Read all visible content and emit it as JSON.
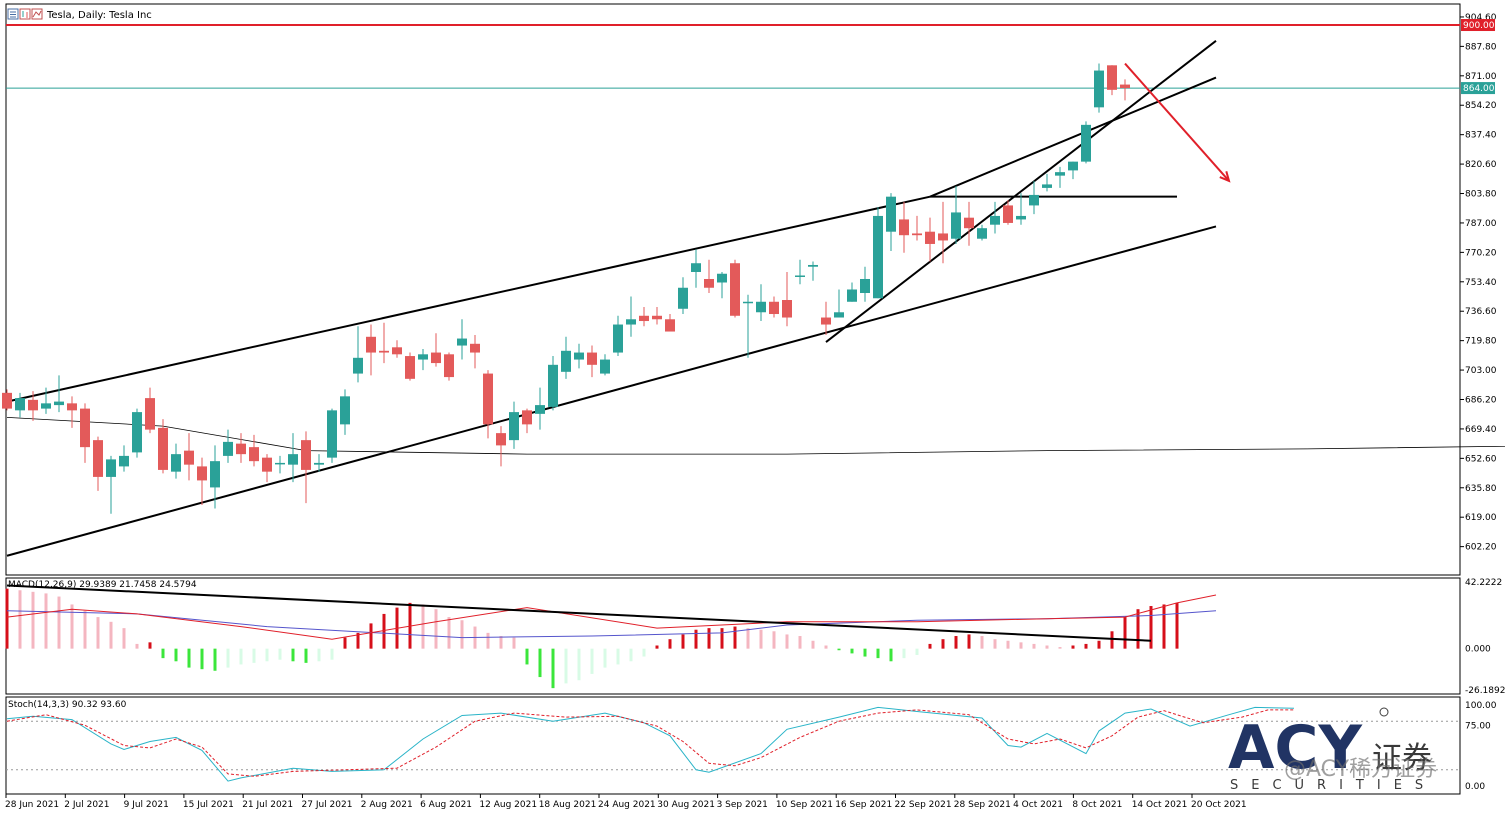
{
  "header": {
    "title": "Tesla, Daily:  Tesla Inc"
  },
  "chart_data": {
    "type": "candlestick",
    "symbol": "Tesla",
    "timeframe": "Daily",
    "price_axis": {
      "range": [
        586.0,
        912.0
      ],
      "ticks": [
        "904.60",
        "887.80",
        "871.00",
        "854.20",
        "837.40",
        "820.60",
        "803.80",
        "787.00",
        "770.20",
        "753.40",
        "736.60",
        "719.80",
        "703.00",
        "686.20",
        "669.40",
        "652.60",
        "635.80",
        "619.00",
        "602.20"
      ]
    },
    "date_ticks": [
      "28 Jun 2021",
      "2 Jul 2021",
      "9 Jul 2021",
      "15 Jul 2021",
      "21 Jul 2021",
      "27 Jul 2021",
      "2 Aug 2021",
      "6 Aug 2021",
      "12 Aug 2021",
      "18 Aug 2021",
      "24 Aug 2021",
      "30 Aug 2021",
      "3 Sep 2021",
      "10 Sep 2021",
      "16 Sep 2021",
      "22 Sep 2021",
      "28 Sep 2021",
      "4 Oct 2021",
      "8 Oct 2021",
      "14 Oct 2021",
      "20 Oct 2021"
    ],
    "horizontal_lines": [
      {
        "price": 900.0,
        "label": "900.00",
        "color": "#e0202a"
      },
      {
        "price": 864.0,
        "label": "864.00",
        "color": "#2aa198"
      }
    ],
    "colors": {
      "up": "#2aa198",
      "down": "#e35a5a",
      "trend": "#000000",
      "arrow": "#e0202a"
    },
    "candles": [
      [
        690,
        681,
        692,
        680
      ],
      [
        680,
        687,
        690,
        676
      ],
      [
        686,
        680,
        691,
        674
      ],
      [
        681,
        684,
        693,
        678
      ],
      [
        683,
        685,
        700,
        679
      ],
      [
        684,
        680,
        688,
        670
      ],
      [
        681,
        659,
        684,
        650
      ],
      [
        663,
        642,
        665,
        634
      ],
      [
        642,
        652,
        654,
        621
      ],
      [
        648,
        654,
        660,
        645
      ],
      [
        656,
        679,
        681,
        653
      ],
      [
        687,
        669,
        693,
        667
      ],
      [
        670,
        646,
        675,
        644
      ],
      [
        645,
        655,
        661,
        641
      ],
      [
        657,
        649,
        667,
        640
      ],
      [
        648,
        640,
        653,
        626
      ],
      [
        636,
        651,
        660,
        624
      ],
      [
        654,
        662,
        669,
        650
      ],
      [
        661,
        655,
        667,
        650
      ],
      [
        659,
        651,
        666,
        648
      ],
      [
        653,
        645,
        655,
        639
      ],
      [
        650,
        650,
        654,
        644
      ],
      [
        649,
        655,
        667,
        639
      ],
      [
        663,
        646,
        668,
        627
      ],
      [
        649,
        650,
        655,
        645
      ],
      [
        653,
        680,
        681,
        650
      ],
      [
        672,
        688,
        692,
        666
      ],
      [
        701,
        710,
        728,
        696
      ],
      [
        722,
        713,
        729,
        700
      ],
      [
        714,
        713,
        730,
        707
      ],
      [
        716,
        712,
        720,
        710
      ],
      [
        711,
        698,
        713,
        697
      ],
      [
        709,
        712,
        715,
        703
      ],
      [
        713,
        707,
        724,
        705
      ],
      [
        712,
        699,
        713,
        697
      ],
      [
        717,
        721,
        732,
        709
      ],
      [
        718,
        713,
        723,
        704
      ],
      [
        701,
        672,
        703,
        664
      ],
      [
        667,
        660,
        671,
        648
      ],
      [
        663,
        679,
        685,
        658
      ],
      [
        680,
        672,
        681,
        667
      ],
      [
        678,
        683,
        693,
        669
      ],
      [
        682,
        706,
        711,
        680
      ],
      [
        702,
        714,
        722,
        698
      ],
      [
        709,
        713,
        718,
        704
      ],
      [
        713,
        706,
        717,
        699
      ],
      [
        701,
        709,
        712,
        700
      ],
      [
        713,
        729,
        734,
        711
      ],
      [
        729,
        732,
        745,
        722
      ],
      [
        734,
        731,
        739,
        728
      ],
      [
        734,
        732,
        739,
        729
      ],
      [
        732,
        725,
        735,
        726
      ],
      [
        738,
        750,
        756,
        735
      ],
      [
        759,
        764,
        772,
        750
      ],
      [
        755,
        750,
        766,
        747
      ],
      [
        753,
        758,
        759,
        744
      ],
      [
        764,
        734,
        766,
        733
      ],
      [
        742,
        742,
        746,
        710
      ],
      [
        736,
        742,
        752,
        731
      ],
      [
        742,
        735,
        745,
        733
      ],
      [
        743,
        733,
        759,
        728
      ],
      [
        757,
        757,
        766,
        752
      ],
      [
        762,
        763,
        765,
        754
      ],
      [
        733,
        729,
        742,
        723
      ],
      [
        733,
        736,
        749,
        733
      ],
      [
        742,
        749,
        753,
        742
      ],
      [
        747,
        755,
        762,
        742
      ],
      [
        744,
        791,
        796,
        744
      ],
      [
        782,
        802,
        804,
        771
      ],
      [
        789,
        780,
        799,
        770
      ],
      [
        781,
        780,
        791,
        777
      ],
      [
        782,
        775,
        790,
        765
      ],
      [
        781,
        777,
        799,
        764
      ],
      [
        778,
        793,
        808,
        775
      ],
      [
        790,
        784,
        799,
        774
      ],
      [
        778,
        784,
        786,
        777
      ],
      [
        786,
        791,
        799,
        781
      ],
      [
        797,
        787,
        800,
        786
      ],
      [
        789,
        791,
        804,
        786
      ],
      [
        797,
        803,
        811,
        792
      ],
      [
        807,
        809,
        815,
        805
      ],
      [
        814,
        816,
        819,
        807
      ],
      [
        817,
        822,
        822,
        812
      ],
      [
        822,
        843,
        845,
        821
      ],
      [
        853,
        874,
        878,
        850
      ],
      [
        877,
        863,
        877,
        860
      ],
      [
        866,
        864,
        869,
        857
      ]
    ],
    "ma_curve": [
      [
        0,
        676
      ],
      [
        12,
        671
      ],
      [
        23,
        657
      ],
      [
        40,
        655
      ],
      [
        60,
        655
      ],
      [
        80,
        657
      ],
      [
        100,
        658
      ],
      [
        120,
        660
      ],
      [
        140,
        661
      ],
      [
        160,
        664
      ],
      [
        170,
        670
      ],
      [
        178,
        680
      ],
      [
        184,
        696
      ],
      [
        186,
        702
      ]
    ],
    "trendlines": [
      {
        "name": "channel-upper",
        "from": [
          0,
          685
        ],
        "to": [
          71,
          802
        ]
      },
      {
        "name": "channel-lower",
        "from": [
          0,
          597
        ],
        "to": [
          93,
          785
        ]
      },
      {
        "name": "support-rising",
        "from": [
          63,
          719
        ],
        "to": [
          93,
          891
        ]
      },
      {
        "name": "resistance-upper",
        "from": [
          71,
          802
        ],
        "to": [
          93,
          870
        ]
      },
      {
        "name": "horizontal-level",
        "from": [
          71,
          802
        ],
        "to": [
          90,
          802
        ]
      }
    ],
    "arrow": {
      "from": [
        86,
        878
      ],
      "to": [
        94,
        811
      ]
    },
    "macd": {
      "label": "MACD(12,26,9) 29.9389 21.7458 24.5794",
      "ticks": [
        "42.2222",
        "0.000",
        "-26.1892"
      ],
      "range": [
        -26.1892,
        42.2222
      ],
      "histogram": [
        38,
        37,
        36,
        35,
        33,
        28,
        24,
        20,
        17,
        13,
        3,
        4,
        -6,
        -8,
        -12,
        -13,
        -14,
        -12,
        -10,
        -9,
        -8,
        -7,
        -8,
        -9,
        -8,
        -7,
        7,
        10,
        16,
        22,
        26,
        29,
        28,
        25,
        20,
        18,
        14,
        10,
        8,
        7,
        -10,
        -18,
        -25,
        -22,
        -20,
        -16,
        -12,
        -10,
        -8,
        -5,
        2,
        6,
        9,
        12,
        13,
        13,
        14,
        13,
        12,
        11,
        9,
        8,
        5,
        2,
        -1,
        -3,
        -5,
        -6,
        -8,
        -6,
        -4,
        3,
        6,
        8,
        9,
        8,
        6,
        5,
        4,
        3,
        2,
        1,
        2,
        3,
        5,
        11,
        20,
        25,
        27,
        28,
        29
      ],
      "signal_path": [
        [
          0,
          24
        ],
        [
          10,
          22
        ],
        [
          20,
          14
        ],
        [
          35,
          7
        ],
        [
          45,
          8
        ],
        [
          55,
          10
        ],
        [
          60,
          15
        ],
        [
          70,
          18
        ],
        [
          80,
          19
        ],
        [
          88,
          21
        ],
        [
          93,
          24
        ]
      ],
      "macd_path": [
        [
          0,
          20
        ],
        [
          5,
          25
        ],
        [
          10,
          22
        ],
        [
          18,
          14
        ],
        [
          25,
          6
        ],
        [
          33,
          17
        ],
        [
          40,
          26
        ],
        [
          50,
          13
        ],
        [
          60,
          17
        ],
        [
          70,
          17
        ],
        [
          80,
          19
        ],
        [
          86,
          20
        ],
        [
          90,
          29
        ],
        [
          93,
          34
        ]
      ],
      "trendline": {
        "from": [
          0,
          40
        ],
        "to": [
          88,
          5
        ]
      }
    },
    "stoch": {
      "label": "Stoch(14,3,3) 90.32 93.60",
      "ticks": [
        "100.00",
        "75.00",
        "0.00"
      ],
      "levels": [
        80,
        20
      ],
      "range": [
        0,
        100
      ],
      "main_path": [
        [
          0,
          83
        ],
        [
          2,
          86
        ],
        [
          5,
          82
        ],
        [
          8,
          52
        ],
        [
          9,
          45
        ],
        [
          11,
          55
        ],
        [
          13,
          60
        ],
        [
          15,
          44
        ],
        [
          17,
          6
        ],
        [
          18,
          10
        ],
        [
          22,
          22
        ],
        [
          25,
          18
        ],
        [
          29,
          20
        ],
        [
          32,
          58
        ],
        [
          35,
          87
        ],
        [
          38,
          90
        ],
        [
          42,
          80
        ],
        [
          46,
          90
        ],
        [
          49,
          78
        ],
        [
          51,
          62
        ],
        [
          53,
          20
        ],
        [
          54,
          17
        ],
        [
          58,
          40
        ],
        [
          60,
          70
        ],
        [
          64,
          85
        ],
        [
          67,
          97
        ],
        [
          70,
          92
        ],
        [
          75,
          84
        ],
        [
          77,
          50
        ],
        [
          78,
          48
        ],
        [
          80,
          65
        ],
        [
          83,
          40
        ],
        [
          84,
          68
        ],
        [
          86,
          90
        ],
        [
          88,
          95
        ],
        [
          91,
          74
        ],
        [
          94,
          88
        ],
        [
          96,
          97
        ],
        [
          99,
          96
        ]
      ],
      "signal_path": [
        [
          0,
          80
        ],
        [
          3,
          88
        ],
        [
          6,
          75
        ],
        [
          9,
          50
        ],
        [
          11,
          47
        ],
        [
          13,
          58
        ],
        [
          15,
          48
        ],
        [
          17,
          15
        ],
        [
          19,
          12
        ],
        [
          22,
          18
        ],
        [
          26,
          20
        ],
        [
          30,
          22
        ],
        [
          33,
          48
        ],
        [
          36,
          80
        ],
        [
          39,
          90
        ],
        [
          43,
          85
        ],
        [
          47,
          86
        ],
        [
          50,
          74
        ],
        [
          52,
          55
        ],
        [
          54,
          28
        ],
        [
          56,
          25
        ],
        [
          58,
          35
        ],
        [
          61,
          60
        ],
        [
          64,
          80
        ],
        [
          67,
          90
        ],
        [
          70,
          94
        ],
        [
          74,
          88
        ],
        [
          77,
          58
        ],
        [
          79,
          52
        ],
        [
          81,
          58
        ],
        [
          83,
          47
        ],
        [
          85,
          62
        ],
        [
          87,
          85
        ],
        [
          89,
          93
        ],
        [
          92,
          78
        ],
        [
          95,
          85
        ],
        [
          97,
          94
        ],
        [
          99,
          94
        ]
      ]
    }
  },
  "watermark": {
    "logo_text": "ACY",
    "cn_text": "证券",
    "sub_text": "SECURITIES",
    "social_text": "@ACY稀万证券"
  }
}
